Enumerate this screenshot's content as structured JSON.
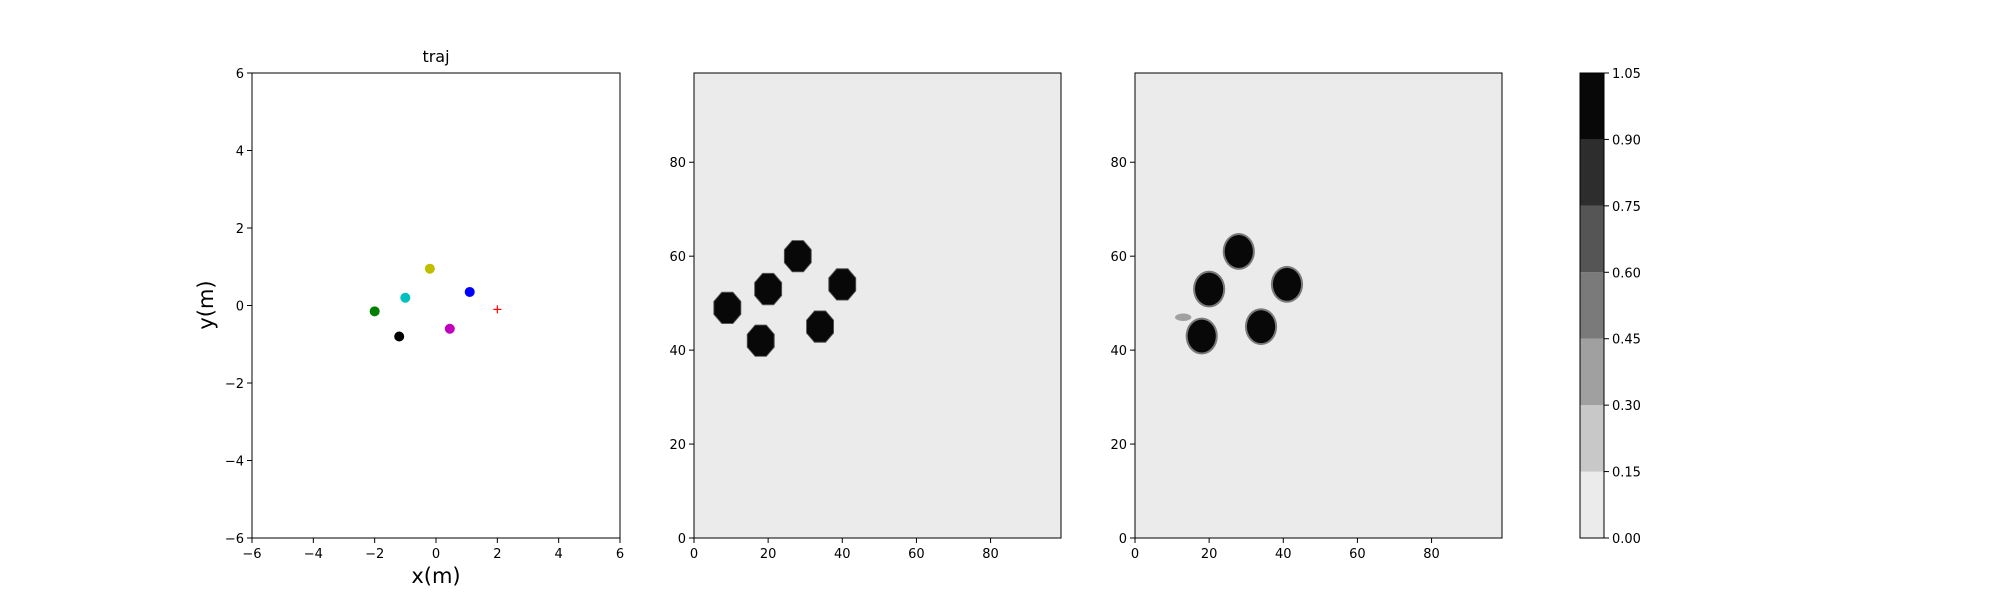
{
  "chart_data": [
    {
      "type": "scatter",
      "title": "traj",
      "xlabel": "x(m)",
      "ylabel": "y(m)",
      "xlim": [
        -6,
        6
      ],
      "ylim": [
        -6,
        6
      ],
      "xticks": [
        -6,
        -4,
        -2,
        0,
        2,
        4,
        6
      ],
      "yticks": [
        -6,
        -4,
        -2,
        0,
        2,
        4,
        6
      ],
      "xtick_labels": [
        "−6",
        "−4",
        "−2",
        "0",
        "2",
        "4",
        "6"
      ],
      "ytick_labels": [
        "−6",
        "−4",
        "−2",
        "0",
        "2",
        "4",
        "6"
      ],
      "grid": false,
      "points": [
        {
          "x": -0.2,
          "y": 0.95,
          "color": "#bfbf00",
          "marker": "circle"
        },
        {
          "x": 1.1,
          "y": 0.35,
          "color": "#0000ff",
          "marker": "circle"
        },
        {
          "x": -1.0,
          "y": 0.2,
          "color": "#00bfbf",
          "marker": "circle"
        },
        {
          "x": -2.0,
          "y": -0.15,
          "color": "#008000",
          "marker": "circle"
        },
        {
          "x": 0.45,
          "y": -0.6,
          "color": "#bf00bf",
          "marker": "circle"
        },
        {
          "x": -1.2,
          "y": -0.8,
          "color": "#000000",
          "marker": "circle"
        },
        {
          "x": 2.0,
          "y": -0.1,
          "color": "#ff0000",
          "marker": "plus"
        }
      ]
    },
    {
      "type": "heatmap",
      "xlim": [
        0,
        99
      ],
      "ylim": [
        0,
        99
      ],
      "xticks": [
        0,
        20,
        40,
        60,
        80
      ],
      "yticks": [
        0,
        20,
        40,
        60,
        80
      ],
      "xtick_labels": [
        "0",
        "20",
        "40",
        "60",
        "80"
      ],
      "ytick_labels": [
        "0",
        "20",
        "40",
        "60",
        "80"
      ],
      "background_value": 0.05,
      "blobs": [
        {
          "cx": 28,
          "cy": 60,
          "value": 1.0
        },
        {
          "cx": 20,
          "cy": 53,
          "value": 1.0
        },
        {
          "cx": 40,
          "cy": 54,
          "value": 1.0
        },
        {
          "cx": 9,
          "cy": 49,
          "value": 1.0
        },
        {
          "cx": 34,
          "cy": 45,
          "value": 1.0
        },
        {
          "cx": 18,
          "cy": 42,
          "value": 1.0
        }
      ]
    },
    {
      "type": "heatmap",
      "xlim": [
        0,
        99
      ],
      "ylim": [
        0,
        99
      ],
      "xticks": [
        0,
        20,
        40,
        60,
        80
      ],
      "yticks": [
        0,
        20,
        40,
        60,
        80
      ],
      "xtick_labels": [
        "0",
        "20",
        "40",
        "60",
        "80"
      ],
      "ytick_labels": [
        "0",
        "20",
        "40",
        "60",
        "80"
      ],
      "background_value": 0.05,
      "blobs": [
        {
          "cx": 28,
          "cy": 61,
          "value": 1.0
        },
        {
          "cx": 20,
          "cy": 53,
          "value": 1.0
        },
        {
          "cx": 41,
          "cy": 54,
          "value": 1.0
        },
        {
          "cx": 34,
          "cy": 45,
          "value": 1.0
        },
        {
          "cx": 18,
          "cy": 43,
          "value": 1.0
        },
        {
          "cx": 13,
          "cy": 47,
          "value": 0.35
        }
      ]
    }
  ],
  "colorbar": {
    "levels": [
      0.0,
      0.15,
      0.3,
      0.45,
      0.6,
      0.75,
      0.9,
      1.05
    ],
    "tick_labels": [
      "0.00",
      "0.15",
      "0.30",
      "0.45",
      "0.60",
      "0.75",
      "0.90",
      "1.05"
    ],
    "colors": [
      "#ebebeb",
      "#c8c8c8",
      "#a0a0a0",
      "#7a7a7a",
      "#555555",
      "#2d2d2d",
      "#080808"
    ]
  }
}
